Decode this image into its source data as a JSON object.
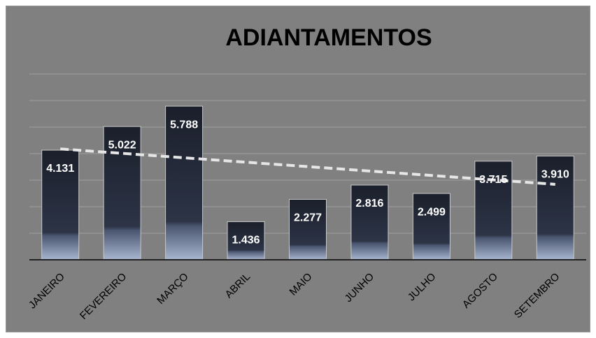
{
  "chart_data": {
    "type": "bar",
    "title": "ADIANTAMENTOS",
    "categories": [
      "JANEIRO",
      "FEVEREIRO",
      "MARÇO",
      "ABRIL",
      "MAIO",
      "JUNHO",
      "JULHO",
      "AGOSTO",
      "SETEMBRO"
    ],
    "values": [
      4131,
      5022,
      5788,
      1436,
      2277,
      2816,
      2499,
      3715,
      3910
    ],
    "value_labels": [
      "4.131",
      "5.022",
      "5.788",
      "1.436",
      "2.277",
      "2.816",
      "2.499",
      "3.715",
      "3.910"
    ],
    "ylim": [
      0,
      7000
    ],
    "yticks": [
      0,
      1000,
      2000,
      3000,
      4000,
      5000,
      6000,
      7000
    ],
    "grid": true,
    "trendline": true
  }
}
